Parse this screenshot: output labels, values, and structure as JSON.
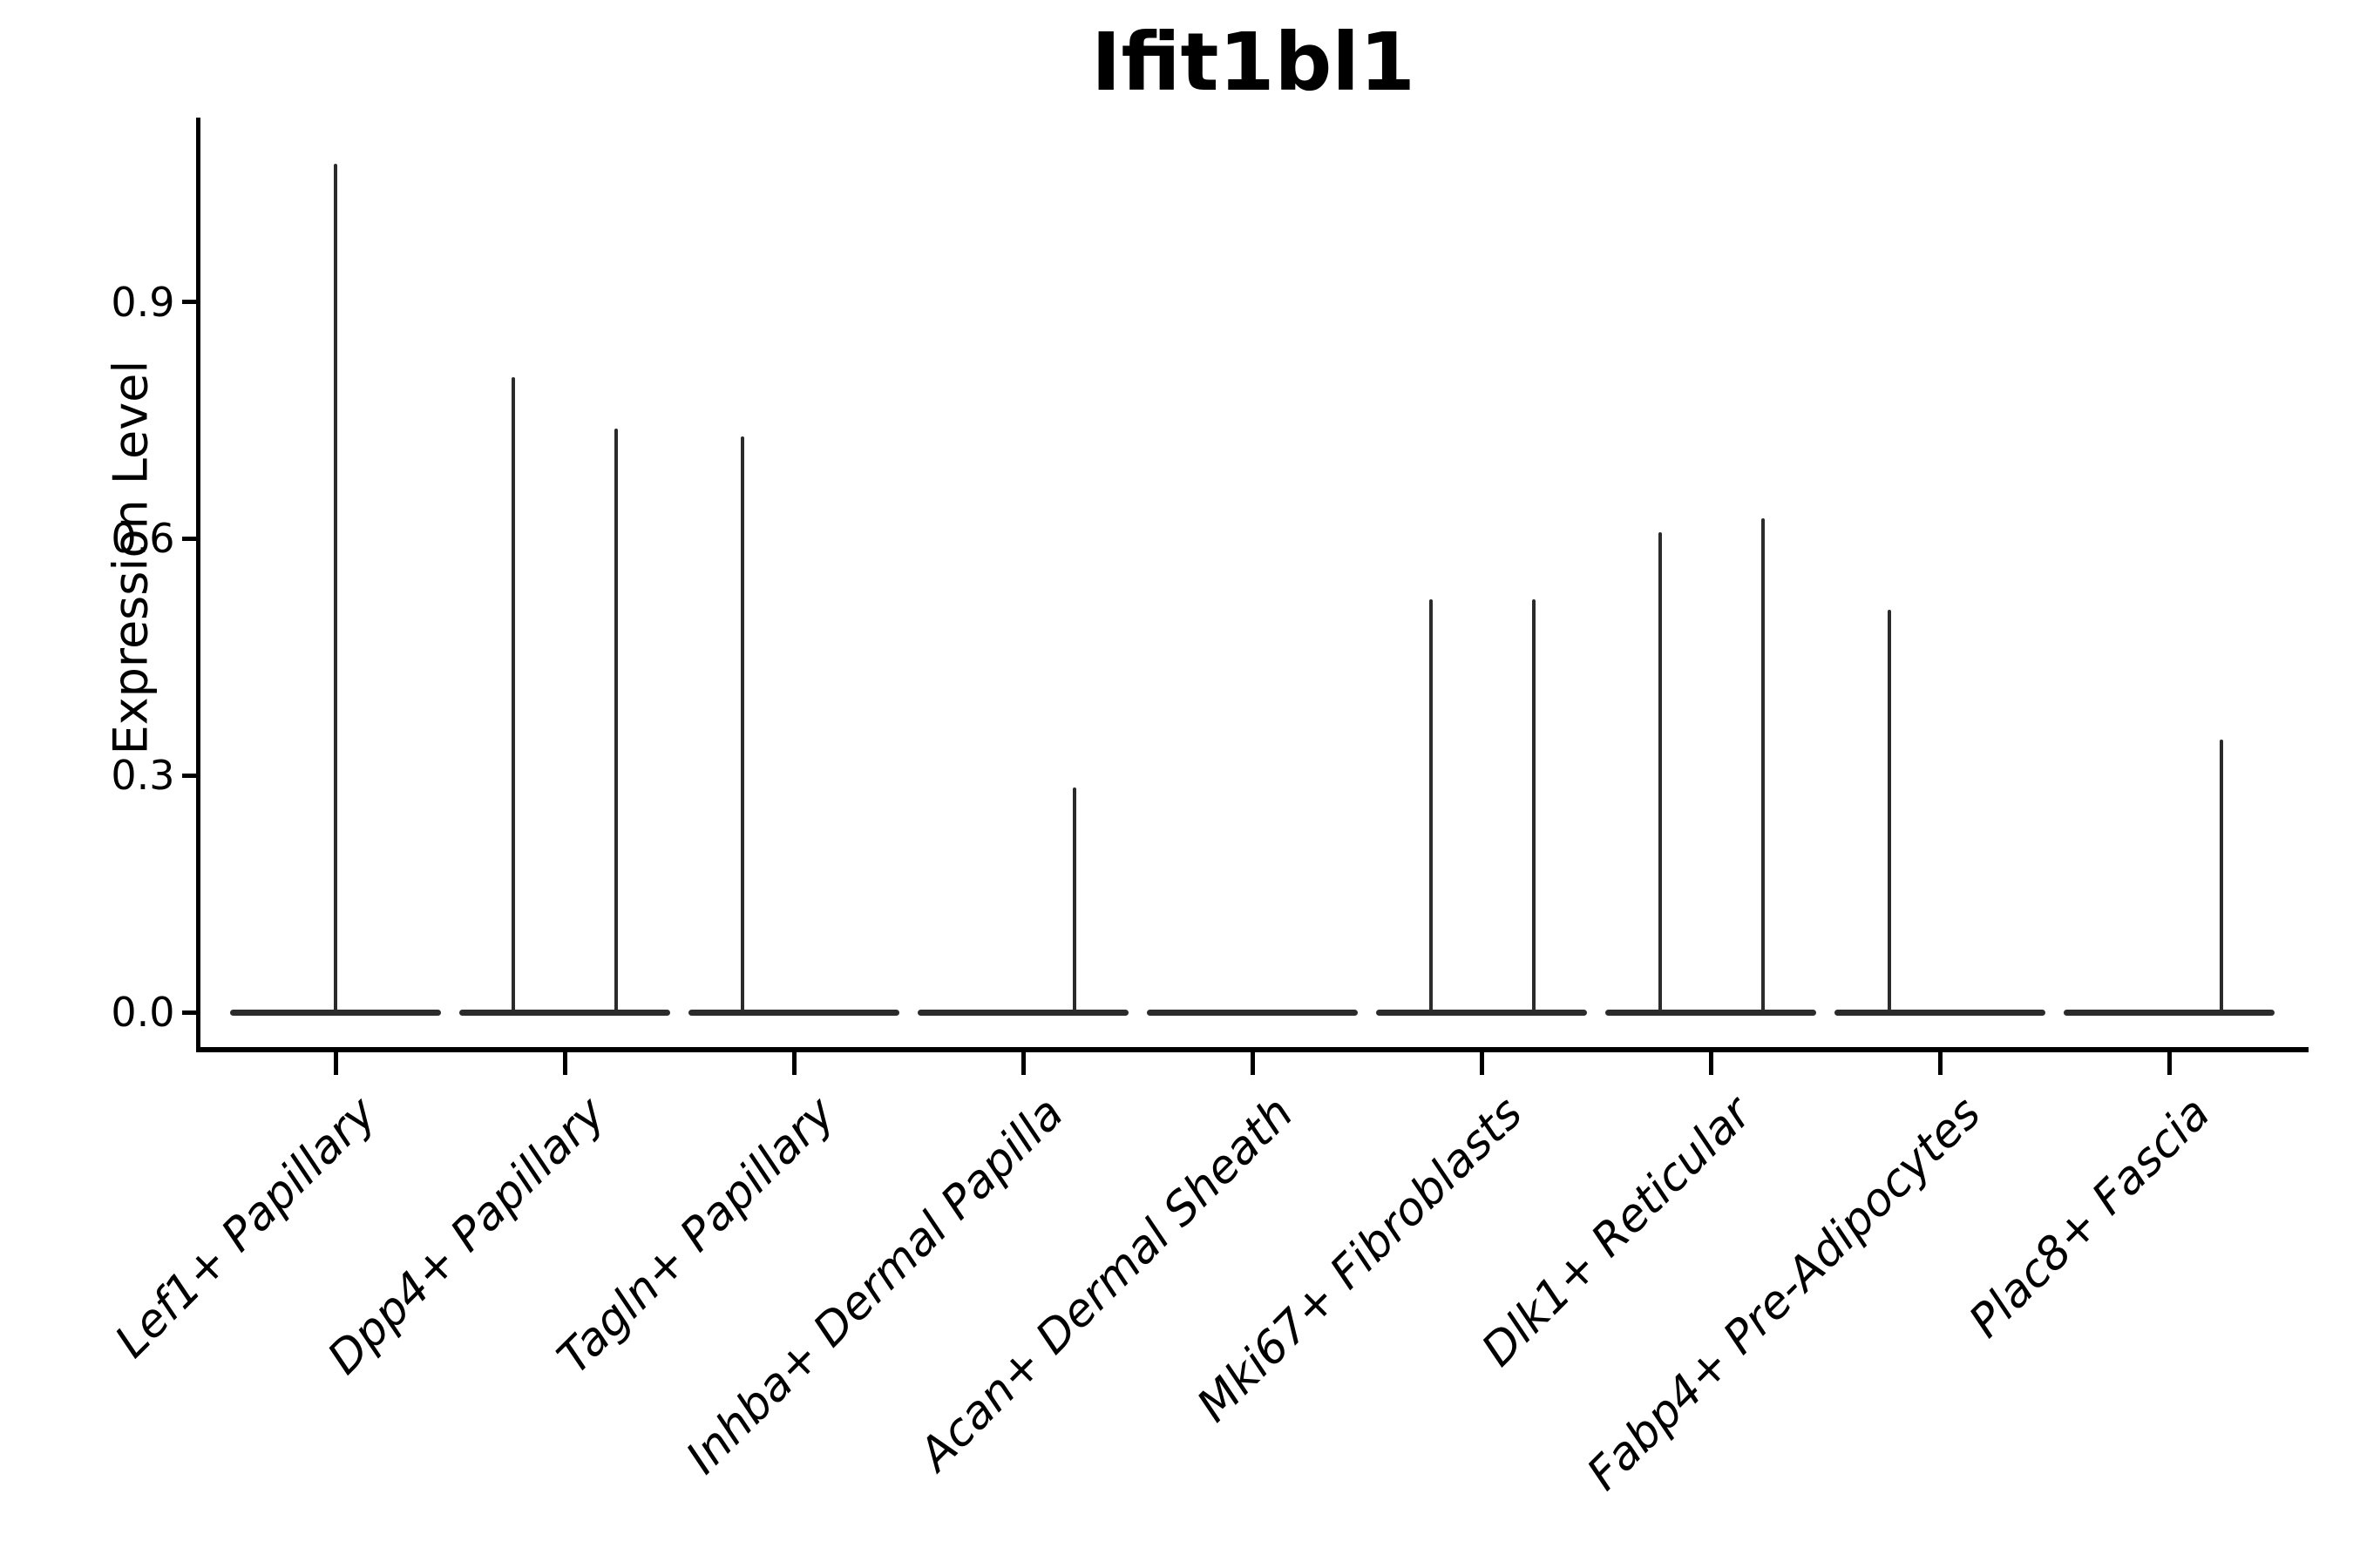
{
  "title": "Ifit1bl1",
  "axes": {
    "y_label": "Expression Level"
  },
  "chart_data": {
    "type": "violin",
    "title": "Ifit1bl1",
    "xlabel": "",
    "ylabel": "Expression Level",
    "ylim": [
      0,
      1.13
    ],
    "yticks": [
      0.0,
      0.3,
      0.6,
      0.9
    ],
    "grid": false,
    "legend": null,
    "background": "#ffffff",
    "colors": {
      "violin": "#2b2b2b",
      "axis": "#000000",
      "text": "#000000"
    },
    "categories": [
      "Lef1+ Papillary",
      "Dpp4+ Papillary",
      "Tagln+ Papillary",
      "Inhba+ Dermal Papilla",
      "Acan+ Dermal Sheath",
      "Mki67+ Fibroblasts",
      "Dlk1+ Reticular",
      "Fabp4+ Pre-Adipocytes",
      "Plac8+ Fascia"
    ],
    "violins": [
      {
        "category": "Lef1+ Papillary",
        "zero_body": true,
        "spikes": [
          {
            "offset": 0,
            "max": 1.075
          }
        ]
      },
      {
        "category": "Dpp4+ Papillary",
        "zero_body": true,
        "spikes": [
          {
            "offset": -0.225,
            "max": 0.805
          },
          {
            "offset": 0.225,
            "max": 0.74
          }
        ]
      },
      {
        "category": "Tagln+ Papillary",
        "zero_body": true,
        "spikes": [
          {
            "offset": -0.225,
            "max": 0.73
          }
        ]
      },
      {
        "category": "Inhba+ Dermal Papilla",
        "zero_body": true,
        "spikes": [
          {
            "offset": 0.225,
            "max": 0.285
          }
        ]
      },
      {
        "category": "Acan+ Dermal Sheath",
        "zero_body": true,
        "spikes": []
      },
      {
        "category": "Mki67+ Fibroblasts",
        "zero_body": true,
        "spikes": [
          {
            "offset": -0.22,
            "max": 0.523
          },
          {
            "offset": 0.228,
            "max": 0.523
          }
        ]
      },
      {
        "category": "Dlk1+ Reticular",
        "zero_body": true,
        "spikes": [
          {
            "offset": -0.22,
            "max": 0.608
          },
          {
            "offset": 0.228,
            "max": 0.626
          }
        ]
      },
      {
        "category": "Fabp4+ Pre-Adipocytes",
        "zero_body": true,
        "spikes": [
          {
            "offset": -0.22,
            "max": 0.51
          }
        ]
      },
      {
        "category": "Plac8+ Fascia",
        "zero_body": true,
        "spikes": [
          {
            "offset": 0.23,
            "max": 0.346
          }
        ]
      }
    ]
  }
}
